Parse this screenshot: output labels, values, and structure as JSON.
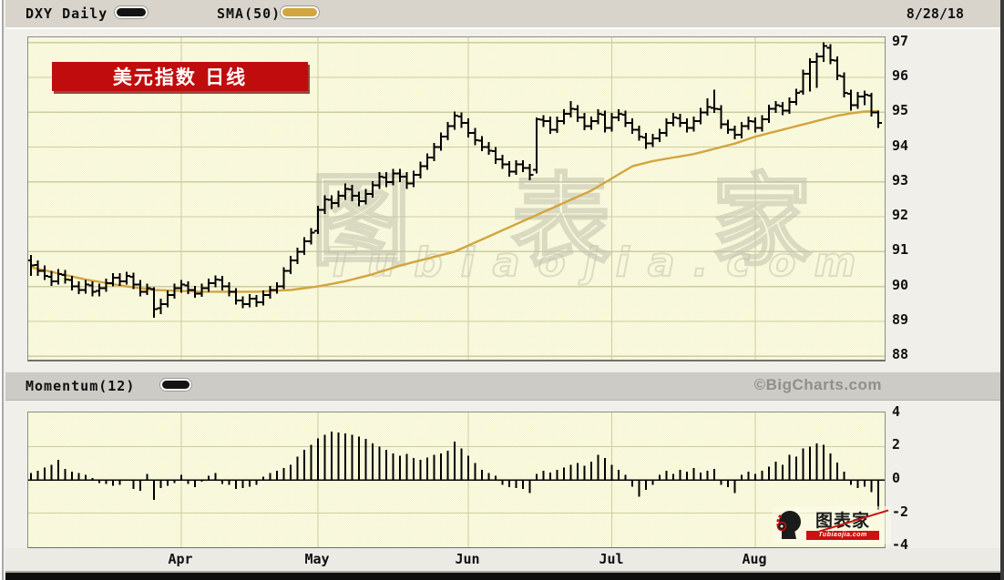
{
  "legend": {
    "series1_label": "DXY Daily",
    "series2_label": "SMA(50)",
    "date": "8/28/18"
  },
  "banner": {
    "text": "美元指数  日线"
  },
  "watermark": {
    "line1": "图表家",
    "line2": "Tubiaojia.com"
  },
  "panels": {
    "momentum_label": "Momentum(12)",
    "copyright": "©BigCharts.com"
  },
  "logo": {
    "text": "图表家",
    "subtext": "Tubiaojia.com"
  },
  "colors": {
    "bars": "#000000",
    "sma": "#d2a541",
    "grid": "#cdcda0",
    "banner_red": "#c00c0c",
    "logo_red": "#cc1111",
    "copyright_gray": "#8f8f8c"
  },
  "chart_data": [
    {
      "type": "ohlc",
      "title": "DXY Daily",
      "overlay": "SMA(50)",
      "ylim": [
        87.9,
        97.15
      ],
      "y_ticks": [
        97,
        96,
        95,
        94,
        93,
        92,
        91,
        90,
        89,
        88
      ],
      "x_months": [
        "Apr",
        "May",
        "Jun",
        "Jul",
        "Aug"
      ],
      "month_start_indices": [
        22,
        42,
        64,
        85,
        106
      ],
      "bars": [
        [
          90.75,
          90.9,
          90.3,
          90.6
        ],
        [
          90.62,
          90.75,
          90.3,
          90.45
        ],
        [
          90.45,
          90.6,
          90.18,
          90.3
        ],
        [
          90.28,
          90.45,
          90.02,
          90.15
        ],
        [
          90.15,
          90.5,
          90.05,
          90.35
        ],
        [
          90.33,
          90.48,
          90.08,
          90.2
        ],
        [
          90.18,
          90.3,
          89.88,
          90.0
        ],
        [
          90.0,
          90.15,
          89.78,
          89.9
        ],
        [
          89.9,
          90.18,
          89.8,
          90.05
        ],
        [
          90.03,
          90.15,
          89.72,
          89.85
        ],
        [
          89.87,
          90.08,
          89.72,
          89.95
        ],
        [
          89.95,
          90.22,
          89.85,
          90.1
        ],
        [
          90.1,
          90.38,
          90.0,
          90.25
        ],
        [
          90.25,
          90.38,
          90.02,
          90.15
        ],
        [
          90.15,
          90.42,
          90.05,
          90.3
        ],
        [
          90.28,
          90.4,
          89.92,
          90.05
        ],
        [
          90.05,
          90.18,
          89.72,
          89.85
        ],
        [
          89.85,
          90.08,
          89.75,
          89.95
        ],
        [
          89.93,
          89.98,
          89.1,
          89.35
        ],
        [
          89.37,
          89.65,
          89.2,
          89.5
        ],
        [
          89.5,
          89.88,
          89.4,
          89.75
        ],
        [
          89.75,
          90.08,
          89.65,
          89.95
        ],
        [
          89.95,
          90.18,
          89.82,
          90.05
        ],
        [
          90.03,
          90.15,
          89.78,
          89.9
        ],
        [
          89.9,
          90.02,
          89.68,
          89.8
        ],
        [
          89.8,
          90.08,
          89.7,
          89.95
        ],
        [
          89.95,
          90.22,
          89.85,
          90.1
        ],
        [
          90.1,
          90.32,
          89.98,
          90.2
        ],
        [
          90.18,
          90.3,
          89.88,
          90.0
        ],
        [
          90.0,
          90.12,
          89.72,
          89.85
        ],
        [
          89.85,
          89.95,
          89.48,
          89.6
        ],
        [
          89.6,
          89.72,
          89.38,
          89.5
        ],
        [
          89.5,
          89.78,
          89.4,
          89.65
        ],
        [
          89.65,
          89.75,
          89.42,
          89.55
        ],
        [
          89.55,
          89.88,
          89.45,
          89.75
        ],
        [
          89.75,
          90.02,
          89.65,
          89.9
        ],
        [
          89.9,
          90.12,
          89.8,
          90.0
        ],
        [
          90.0,
          90.55,
          89.92,
          90.45
        ],
        [
          90.45,
          90.88,
          90.35,
          90.75
        ],
        [
          90.75,
          91.12,
          90.65,
          91.0
        ],
        [
          91.0,
          91.42,
          90.9,
          91.3
        ],
        [
          91.3,
          91.68,
          91.2,
          91.55
        ],
        [
          91.6,
          92.32,
          91.5,
          92.2
        ],
        [
          92.2,
          92.62,
          92.08,
          92.5
        ],
        [
          92.48,
          92.62,
          92.22,
          92.4
        ],
        [
          92.4,
          92.75,
          92.28,
          92.6
        ],
        [
          92.6,
          92.95,
          92.48,
          92.8
        ],
        [
          92.78,
          92.92,
          92.45,
          92.6
        ],
        [
          92.6,
          92.72,
          92.3,
          92.45
        ],
        [
          92.45,
          92.8,
          92.35,
          92.65
        ],
        [
          92.65,
          93.02,
          92.55,
          92.9
        ],
        [
          92.9,
          93.28,
          92.8,
          93.15
        ],
        [
          93.13,
          93.28,
          92.85,
          93.0
        ],
        [
          93.0,
          93.38,
          92.9,
          93.25
        ],
        [
          93.25,
          93.38,
          93.0,
          93.15
        ],
        [
          93.15,
          93.28,
          92.8,
          92.95
        ],
        [
          92.95,
          93.32,
          92.85,
          93.2
        ],
        [
          93.2,
          93.58,
          93.1,
          93.45
        ],
        [
          93.45,
          93.82,
          93.35,
          93.7
        ],
        [
          93.7,
          94.12,
          93.6,
          94.0
        ],
        [
          94.0,
          94.42,
          93.9,
          94.3
        ],
        [
          94.3,
          94.72,
          94.2,
          94.6
        ],
        [
          94.6,
          95.02,
          94.5,
          94.9
        ],
        [
          94.88,
          95.0,
          94.55,
          94.7
        ],
        [
          94.7,
          94.82,
          94.28,
          94.4
        ],
        [
          94.4,
          94.55,
          94.05,
          94.2
        ],
        [
          94.18,
          94.32,
          93.88,
          94.0
        ],
        [
          94.0,
          94.15,
          93.78,
          93.9
        ],
        [
          93.88,
          94.0,
          93.52,
          93.65
        ],
        [
          93.65,
          93.78,
          93.38,
          93.5
        ],
        [
          93.5,
          93.6,
          93.15,
          93.3
        ],
        [
          93.3,
          93.62,
          93.2,
          93.5
        ],
        [
          93.5,
          93.62,
          93.28,
          93.4
        ],
        [
          93.4,
          93.52,
          93.05,
          93.2
        ],
        [
          93.35,
          94.85,
          93.25,
          94.8
        ],
        [
          94.78,
          94.92,
          94.58,
          94.75
        ],
        [
          94.75,
          94.88,
          94.38,
          94.5
        ],
        [
          94.5,
          94.88,
          94.4,
          94.75
        ],
        [
          94.75,
          95.08,
          94.65,
          94.95
        ],
        [
          94.95,
          95.32,
          94.85,
          95.1
        ],
        [
          95.08,
          95.2,
          94.72,
          94.85
        ],
        [
          94.85,
          94.98,
          94.48,
          94.6
        ],
        [
          94.6,
          94.88,
          94.5,
          94.75
        ],
        [
          94.75,
          95.08,
          94.65,
          94.95
        ],
        [
          94.93,
          95.05,
          94.42,
          94.55
        ],
        [
          94.55,
          94.98,
          94.45,
          94.85
        ],
        [
          94.85,
          95.08,
          94.75,
          94.95
        ],
        [
          94.93,
          95.05,
          94.58,
          94.7
        ],
        [
          94.7,
          94.82,
          94.38,
          94.5
        ],
        [
          94.5,
          94.62,
          94.18,
          94.3
        ],
        [
          94.28,
          94.4,
          93.95,
          94.1
        ],
        [
          94.1,
          94.38,
          94.0,
          94.25
        ],
        [
          94.25,
          94.52,
          94.15,
          94.4
        ],
        [
          94.4,
          94.82,
          94.3,
          94.7
        ],
        [
          94.7,
          94.98,
          94.6,
          94.85
        ],
        [
          94.83,
          94.95,
          94.58,
          94.7
        ],
        [
          94.7,
          94.82,
          94.42,
          94.55
        ],
        [
          94.55,
          94.88,
          94.45,
          94.75
        ],
        [
          94.75,
          95.12,
          94.65,
          95.0
        ],
        [
          95.0,
          95.4,
          94.9,
          95.15
        ],
        [
          95.13,
          95.65,
          94.98,
          95.1
        ],
        [
          95.08,
          95.2,
          94.52,
          94.65
        ],
        [
          94.65,
          94.78,
          94.38,
          94.5
        ],
        [
          94.5,
          94.62,
          94.22,
          94.35
        ],
        [
          94.35,
          94.72,
          94.25,
          94.6
        ],
        [
          94.6,
          94.88,
          94.5,
          94.75
        ],
        [
          94.73,
          94.85,
          94.42,
          94.55
        ],
        [
          94.55,
          94.92,
          94.45,
          94.8
        ],
        [
          94.8,
          95.22,
          94.7,
          95.1
        ],
        [
          95.1,
          95.32,
          94.98,
          95.2
        ],
        [
          95.18,
          95.3,
          94.92,
          95.05
        ],
        [
          95.05,
          95.42,
          94.95,
          95.3
        ],
        [
          95.3,
          95.68,
          95.2,
          95.55
        ],
        [
          95.6,
          96.22,
          95.5,
          96.1
        ],
        [
          96.1,
          96.55,
          95.6,
          96.45
        ],
        [
          96.45,
          96.7,
          95.7,
          96.6
        ],
        [
          96.6,
          97.0,
          96.45,
          96.9
        ],
        [
          96.85,
          96.95,
          96.38,
          96.5
        ],
        [
          96.48,
          96.6,
          95.92,
          96.05
        ],
        [
          96.03,
          96.15,
          95.42,
          95.55
        ],
        [
          95.53,
          95.65,
          95.05,
          95.2
        ],
        [
          95.2,
          95.58,
          95.1,
          95.45
        ],
        [
          95.45,
          95.62,
          95.2,
          95.5
        ],
        [
          95.48,
          95.55,
          94.88,
          95.0
        ],
        [
          95.0,
          95.05,
          94.55,
          94.7
        ]
      ],
      "sma50_anchors": [
        [
          0,
          90.55
        ],
        [
          8,
          90.2
        ],
        [
          14,
          90.0
        ],
        [
          18,
          89.9
        ],
        [
          25,
          89.85
        ],
        [
          33,
          89.85
        ],
        [
          38,
          89.9
        ],
        [
          42,
          90.0
        ],
        [
          46,
          90.15
        ],
        [
          50,
          90.35
        ],
        [
          54,
          90.6
        ],
        [
          58,
          90.8
        ],
        [
          62,
          91.0
        ],
        [
          66,
          91.35
        ],
        [
          70,
          91.7
        ],
        [
          74,
          92.05
        ],
        [
          78,
          92.4
        ],
        [
          82,
          92.75
        ],
        [
          85,
          93.1
        ],
        [
          88,
          93.45
        ],
        [
          91,
          93.6
        ],
        [
          94,
          93.7
        ],
        [
          97,
          93.8
        ],
        [
          100,
          93.95
        ],
        [
          103,
          94.1
        ],
        [
          106,
          94.3
        ],
        [
          109,
          94.45
        ],
        [
          112,
          94.6
        ],
        [
          115,
          94.75
        ],
        [
          118,
          94.9
        ],
        [
          120,
          94.97
        ],
        [
          122,
          95.02
        ],
        [
          124,
          95.03
        ]
      ]
    },
    {
      "type": "bar",
      "title": "Momentum(12)",
      "ylim": [
        -4.05,
        4.05
      ],
      "y_ticks": [
        4,
        2,
        0,
        -2,
        -4
      ],
      "values": [
        0.4,
        0.55,
        0.75,
        0.9,
        1.2,
        0.65,
        0.5,
        0.4,
        0.3,
        0.1,
        -0.2,
        -0.25,
        -0.35,
        -0.3,
        -0.05,
        -0.55,
        -0.65,
        0.35,
        -1.2,
        -0.5,
        -0.35,
        -0.2,
        0.3,
        -0.25,
        -0.45,
        -0.1,
        0.25,
        0.4,
        -0.25,
        -0.3,
        -0.55,
        -0.5,
        -0.4,
        -0.3,
        0.2,
        0.4,
        0.55,
        0.7,
        0.9,
        1.4,
        1.8,
        2.1,
        2.5,
        2.7,
        2.9,
        2.85,
        2.8,
        2.7,
        2.6,
        2.45,
        2.2,
        2.0,
        1.8,
        1.6,
        1.45,
        1.55,
        1.3,
        1.2,
        1.35,
        1.5,
        1.6,
        1.75,
        2.3,
        1.9,
        1.45,
        1.0,
        0.6,
        0.4,
        0.25,
        -0.3,
        -0.45,
        -0.5,
        -0.55,
        -0.8,
        0.35,
        0.55,
        0.45,
        0.6,
        0.75,
        0.9,
        1.0,
        0.85,
        1.1,
        1.5,
        1.3,
        0.9,
        0.6,
        0.3,
        -0.4,
        -1.0,
        -0.6,
        -0.3,
        0.3,
        0.55,
        0.35,
        0.6,
        0.5,
        0.7,
        0.45,
        0.55,
        0.65,
        -0.3,
        -0.45,
        -0.8,
        0.3,
        0.5,
        0.35,
        0.55,
        0.8,
        1.1,
        0.9,
        1.5,
        1.4,
        1.9,
        2.0,
        2.2,
        2.1,
        1.6,
        1.05,
        0.5,
        -0.3,
        -0.5,
        -0.4,
        -0.75,
        -1.8
      ]
    }
  ]
}
